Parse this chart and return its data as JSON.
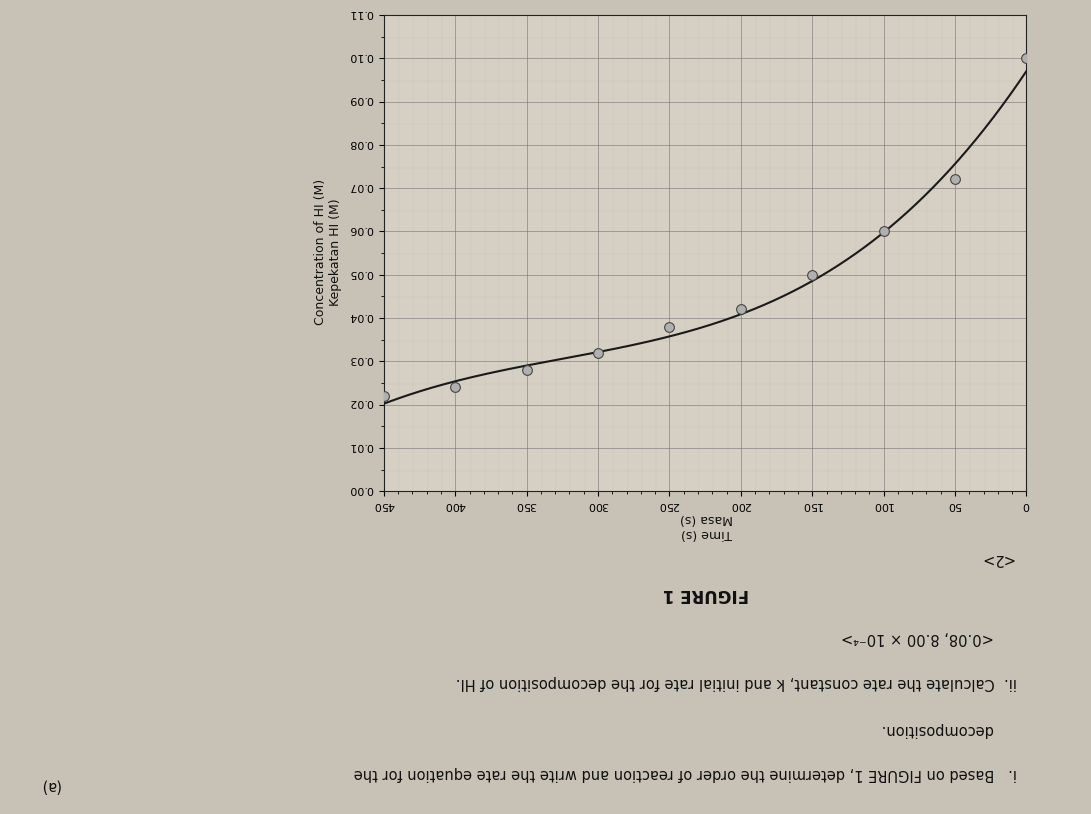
{
  "title": "FIGURE 1",
  "xlabel_en": "Time (s)",
  "xlabel_ms": "Masa (s)",
  "ylabel_en": "Concentration of HI (M)",
  "ylabel_ms": "Kepekatan HI (M)",
  "xlim": [
    0,
    450
  ],
  "ylim": [
    0,
    0.11
  ],
  "xticks": [
    0,
    50,
    100,
    150,
    200,
    250,
    300,
    350,
    400,
    450
  ],
  "yticks": [
    0,
    0.01,
    0.02,
    0.03,
    0.04,
    0.05,
    0.06,
    0.07,
    0.08,
    0.09,
    0.1,
    0.11
  ],
  "data_x": [
    0,
    50,
    100,
    150,
    200,
    250,
    300,
    350,
    400,
    450
  ],
  "data_y": [
    0.1,
    0.072,
    0.06,
    0.05,
    0.042,
    0.038,
    0.032,
    0.028,
    0.024,
    0.022
  ],
  "curve_color": "#1a1a1a",
  "marker_facecolor": "#b0b0b0",
  "marker_edgecolor": "#444444",
  "marker_size": 7,
  "grid_major_color": "#777777",
  "grid_minor_color": "#aaaaaa",
  "plot_bg": "#d6d0c4",
  "figure_bg": "#c8c2b6",
  "outer_bg": "#b8b2a6",
  "text_color": "#111111",
  "title_fontsize": 12,
  "label_fontsize": 9,
  "tick_fontsize": 8,
  "part_label": "(a)",
  "line_i": "i.   Based on FIGURE 1, determine the order of reaction and write the rate equation for the",
  "line_i2": "     decomposition.",
  "line_ii": "ii.  Calculate the rate constant, k and initial rate for the decomposition of HI.",
  "line_ans": "     <0.08, 8.00 × 10⁻⁴>",
  "line_marks": "<2>"
}
